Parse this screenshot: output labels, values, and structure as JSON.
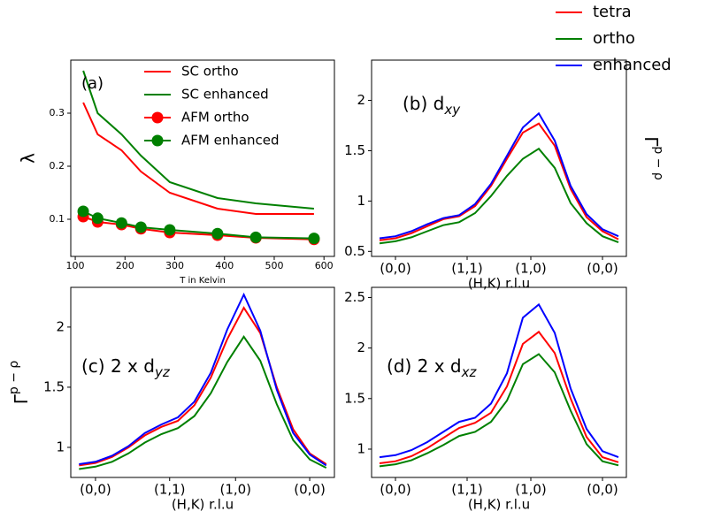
{
  "chart_data": [
    {
      "type": "line",
      "annotation": "(a)",
      "xlabel": "T in Kelvin",
      "ylabel": "λ",
      "x": [
        116,
        145,
        193,
        232,
        290,
        386,
        463,
        580
      ],
      "xlim": [
        91,
        621
      ],
      "xticks": [
        100,
        200,
        300,
        400,
        500,
        600
      ],
      "ylim": [
        0.03,
        0.4
      ],
      "yticks": [
        0.1,
        0.2,
        0.3
      ],
      "legend": "upper right",
      "series": [
        {
          "name": "SC ortho",
          "color": "#ff0000",
          "values": [
            0.32,
            0.26,
            0.23,
            0.19,
            0.15,
            0.12,
            0.11,
            0.11
          ]
        },
        {
          "name": "SC enhanced",
          "color": "#008000",
          "values": [
            0.38,
            0.3,
            0.26,
            0.22,
            0.17,
            0.14,
            0.13,
            0.12
          ]
        },
        {
          "name": "AFM ortho",
          "color": "#ff0000",
          "marker": true,
          "values": [
            0.105,
            0.095,
            0.09,
            0.082,
            0.075,
            0.07,
            0.065,
            0.062
          ]
        },
        {
          "name": "AFM enhanced",
          "color": "#008000",
          "marker": true,
          "values": [
            0.115,
            0.102,
            0.093,
            0.085,
            0.08,
            0.073,
            0.066,
            0.064
          ]
        }
      ]
    },
    {
      "type": "line",
      "annotation": {
        "text": "(b) d",
        "sub": "xy"
      },
      "xlabel": "(H,K) r.l.u",
      "ylabel": {
        "base": "Γ",
        "sup": "p − ρ"
      },
      "ylabel_side": "right",
      "x": [
        0,
        1,
        2,
        3,
        4,
        5,
        6,
        7,
        8,
        9,
        10,
        11,
        12,
        13,
        14,
        15
      ],
      "xlim": [
        -0.5,
        15.5
      ],
      "xticks": [
        {
          "value": 1,
          "label": "(0,0)"
        },
        {
          "value": 5.5,
          "label": "(1,1)"
        },
        {
          "value": 9.5,
          "label": "(1,0)"
        },
        {
          "value": 14,
          "label": "(0,0)"
        }
      ],
      "ylim": [
        0.45,
        2.4
      ],
      "yticks": [
        0.5,
        1.0,
        1.5,
        2.0
      ],
      "legend": "outside upper right",
      "series": [
        {
          "name": "tetra",
          "color": "#ff0000",
          "values": [
            0.61,
            0.63,
            0.68,
            0.75,
            0.82,
            0.85,
            0.95,
            1.15,
            1.42,
            1.68,
            1.77,
            1.55,
            1.12,
            0.84,
            0.7,
            0.62
          ]
        },
        {
          "name": "ortho",
          "color": "#008000",
          "values": [
            0.58,
            0.6,
            0.64,
            0.7,
            0.76,
            0.79,
            0.88,
            1.05,
            1.25,
            1.42,
            1.52,
            1.33,
            0.98,
            0.78,
            0.65,
            0.59
          ]
        },
        {
          "name": "enhanced",
          "color": "#0000ff",
          "values": [
            0.63,
            0.65,
            0.7,
            0.77,
            0.83,
            0.86,
            0.97,
            1.17,
            1.45,
            1.73,
            1.87,
            1.6,
            1.15,
            0.87,
            0.72,
            0.65
          ]
        }
      ]
    },
    {
      "type": "line",
      "annotation": {
        "text": "(c) 2 x d",
        "sub": "yz"
      },
      "xlabel": "(H,K) r.l.u",
      "ylabel": {
        "base": "Γ",
        "sup": "p − ρ"
      },
      "x": [
        0,
        1,
        2,
        3,
        4,
        5,
        6,
        7,
        8,
        9,
        10,
        11,
        12,
        13,
        14,
        15
      ],
      "xlim": [
        -0.5,
        15.5
      ],
      "xticks": [
        {
          "value": 1,
          "label": "(0,0)"
        },
        {
          "value": 5.5,
          "label": "(1,1)"
        },
        {
          "value": 9.5,
          "label": "(1,0)"
        },
        {
          "value": 14,
          "label": "(0,0)"
        }
      ],
      "ylim": [
        0.75,
        2.33
      ],
      "yticks": [
        1.0,
        1.5,
        2.0
      ],
      "series": [
        {
          "color": "#ff0000",
          "values": [
            0.85,
            0.87,
            0.92,
            1.0,
            1.1,
            1.17,
            1.22,
            1.35,
            1.58,
            1.9,
            2.16,
            1.95,
            1.5,
            1.15,
            0.95,
            0.86
          ]
        },
        {
          "color": "#008000",
          "values": [
            0.82,
            0.84,
            0.88,
            0.95,
            1.04,
            1.11,
            1.16,
            1.26,
            1.45,
            1.71,
            1.92,
            1.72,
            1.36,
            1.06,
            0.9,
            0.83
          ]
        },
        {
          "color": "#0000ff",
          "values": [
            0.86,
            0.88,
            0.93,
            1.01,
            1.12,
            1.19,
            1.25,
            1.38,
            1.62,
            1.98,
            2.27,
            1.97,
            1.48,
            1.12,
            0.94,
            0.85
          ]
        }
      ]
    },
    {
      "type": "line",
      "annotation": {
        "text": "(d) 2 x d",
        "sub": "xz"
      },
      "xlabel": "(H,K) r.l.u",
      "x": [
        0,
        1,
        2,
        3,
        4,
        5,
        6,
        7,
        8,
        9,
        10,
        11,
        12,
        13,
        14,
        15
      ],
      "xlim": [
        -0.5,
        15.5
      ],
      "xticks": [
        {
          "value": 1,
          "label": "(0,0)"
        },
        {
          "value": 5.5,
          "label": "(1,1)"
        },
        {
          "value": 9.5,
          "label": "(1,0)"
        },
        {
          "value": 14,
          "label": "(0,0)"
        }
      ],
      "ylim": [
        0.72,
        2.6
      ],
      "yticks": [
        1.0,
        1.5,
        2.0,
        2.5
      ],
      "series": [
        {
          "color": "#ff0000",
          "values": [
            0.86,
            0.88,
            0.93,
            1.01,
            1.11,
            1.21,
            1.26,
            1.36,
            1.62,
            2.04,
            2.16,
            1.95,
            1.5,
            1.12,
            0.92,
            0.87
          ]
        },
        {
          "color": "#008000",
          "values": [
            0.83,
            0.85,
            0.89,
            0.96,
            1.04,
            1.13,
            1.17,
            1.27,
            1.48,
            1.84,
            1.94,
            1.76,
            1.38,
            1.05,
            0.88,
            0.84
          ]
        },
        {
          "color": "#0000ff",
          "values": [
            0.92,
            0.94,
            0.99,
            1.07,
            1.17,
            1.27,
            1.31,
            1.45,
            1.75,
            2.3,
            2.43,
            2.15,
            1.6,
            1.2,
            0.98,
            0.92
          ]
        }
      ]
    }
  ]
}
